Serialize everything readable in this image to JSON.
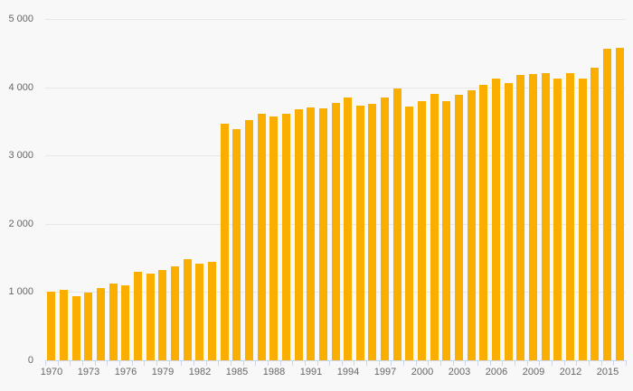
{
  "chart": {
    "colors": {
      "bar": "#faae00",
      "grid": "#e7e7e7",
      "axis": "#ccd6eb",
      "label": "#666666",
      "background": "#f8f8f9"
    }
  },
  "chart_data": {
    "type": "bar",
    "title": "",
    "xlabel": "",
    "ylabel": "",
    "ylim": [
      0,
      5000
    ],
    "ytick_interval": 1000,
    "ytick_labels": [
      "0",
      "1 000",
      "2 000",
      "3 000",
      "4 000",
      "5 000"
    ],
    "xtick_label_every": 3,
    "grid": true,
    "legend": false,
    "categories": [
      1970,
      1971,
      1972,
      1973,
      1974,
      1975,
      1976,
      1977,
      1978,
      1979,
      1980,
      1981,
      1982,
      1983,
      1984,
      1985,
      1986,
      1987,
      1988,
      1989,
      1990,
      1991,
      1992,
      1993,
      1994,
      1995,
      1996,
      1997,
      1998,
      1999,
      2000,
      2001,
      2002,
      2003,
      2004,
      2005,
      2006,
      2007,
      2008,
      2009,
      2010,
      2011,
      2012,
      2013,
      2014,
      2015,
      2016
    ],
    "values": [
      1005,
      1030,
      935,
      990,
      1055,
      1125,
      1100,
      1290,
      1270,
      1325,
      1375,
      1475,
      1415,
      1445,
      3460,
      3385,
      3525,
      3615,
      3565,
      3615,
      3675,
      3700,
      3690,
      3775,
      3845,
      3730,
      3750,
      3850,
      3980,
      3715,
      3790,
      3900,
      3800,
      3895,
      3960,
      4035,
      4130,
      4065,
      4180,
      4190,
      4210,
      4125,
      4200,
      4130,
      4280,
      4570,
      4580
    ]
  }
}
